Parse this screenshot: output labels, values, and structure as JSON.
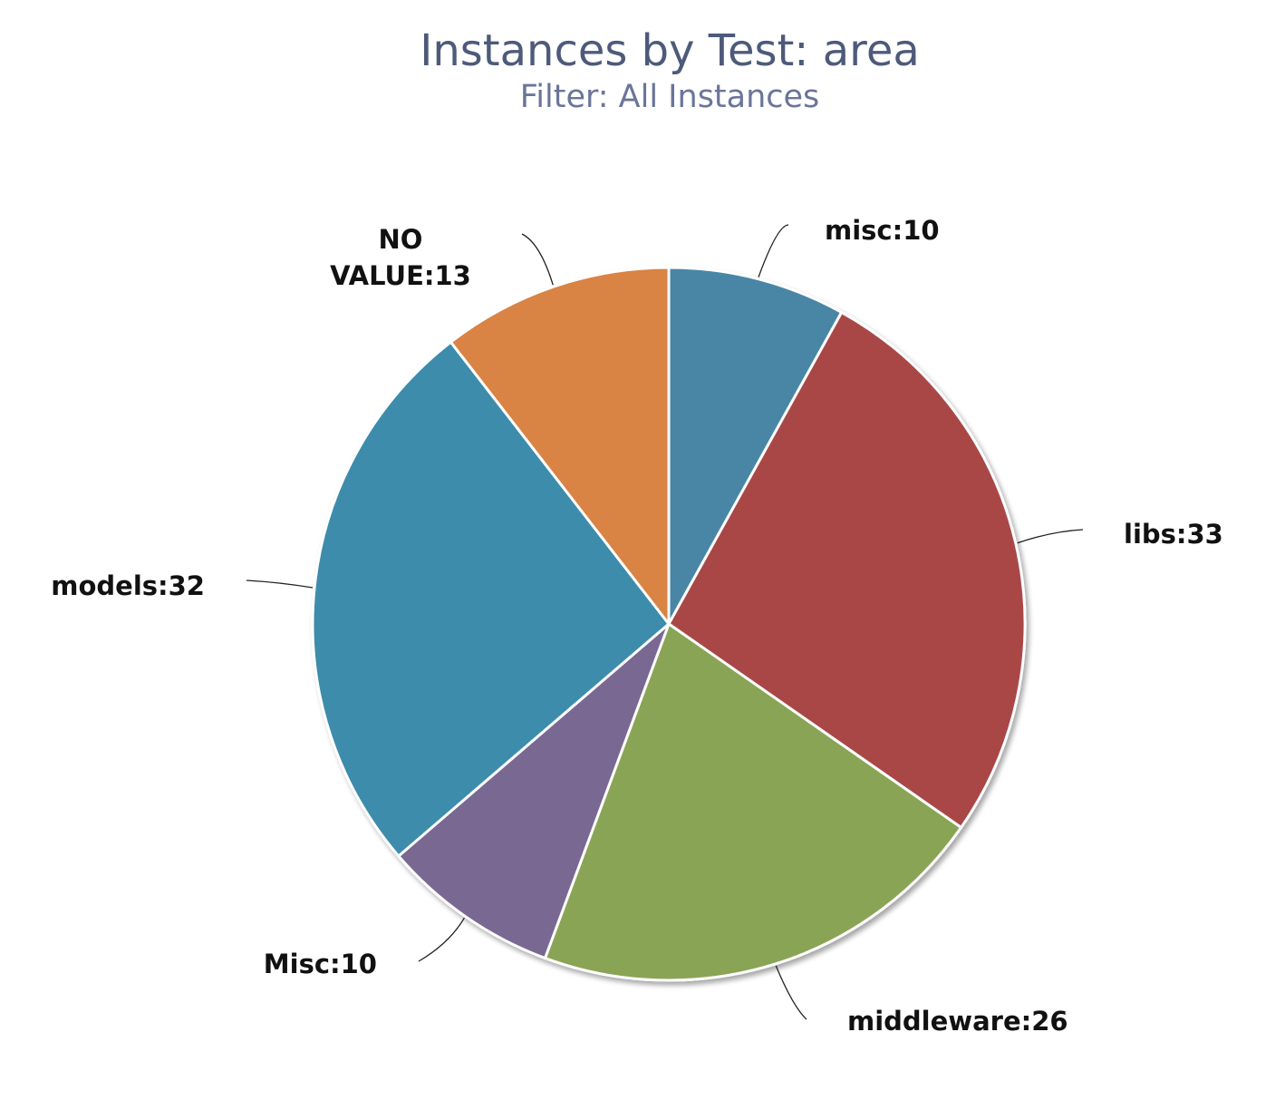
{
  "chart_data": {
    "type": "pie",
    "title": "Instances by Test: area",
    "subtitle": "Filter: All Instances",
    "slices": [
      {
        "label": "misc",
        "value": 10,
        "display": "misc:10",
        "color": "#4a86a6"
      },
      {
        "label": "libs",
        "value": 33,
        "display": "libs:33",
        "color": "#a94747"
      },
      {
        "label": "middleware",
        "value": 26,
        "display": "middleware:26",
        "color": "#8aa455"
      },
      {
        "label": "Misc",
        "value": 10,
        "display": "Misc:10",
        "color": "#796892"
      },
      {
        "label": "models",
        "value": 32,
        "display": "models:32",
        "color": "#3e8cab"
      },
      {
        "label": "NO VALUE",
        "value": 13,
        "display": "NO VALUE:13",
        "color": "#d98345"
      }
    ],
    "start_angle": "12 o'clock",
    "direction": "clockwise"
  }
}
